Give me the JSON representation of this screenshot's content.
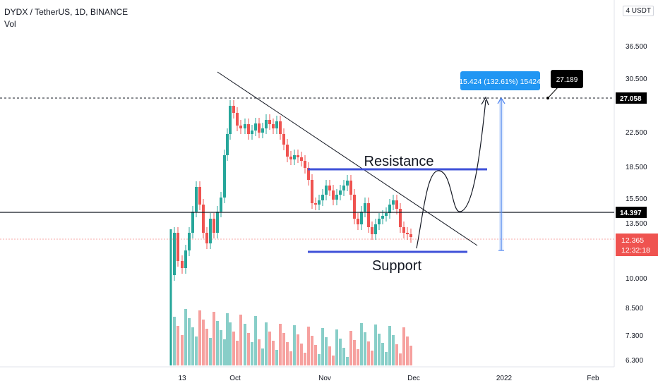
{
  "header": {
    "symbol_line": "DYDX / TetherUS, 1D, BINANCE",
    "indicator": "Vol"
  },
  "currency_badge": "4 USDT",
  "chart_data": {
    "type": "candlestick",
    "x_ticks": [
      "13",
      "Oct",
      "Nov",
      "Dec",
      "2022",
      "Feb"
    ],
    "y_ticks": [
      "36.500",
      "30.500",
      "27.058",
      "22.500",
      "18.500",
      "15.500",
      "14.397",
      "13.500",
      "12.365",
      "12:32:18",
      "10.000",
      "8.500",
      "7.300",
      "6.300"
    ],
    "price_levels": {
      "top_dotted": 27.058,
      "horizontal_line": 14.397,
      "last_price": 12.365,
      "countdown": "12:32:18"
    },
    "annotations": {
      "resistance_label": "Resistance",
      "support_label": "Support",
      "measure_label": "15.424 (132.61%) 15424",
      "target_label": "27.189"
    },
    "colors": {
      "up": "#26a69a",
      "down": "#ef5350",
      "zone_line": "#3f51d8",
      "measure_box": "#2196f3",
      "measure_bar": "#7aa7f5"
    }
  }
}
